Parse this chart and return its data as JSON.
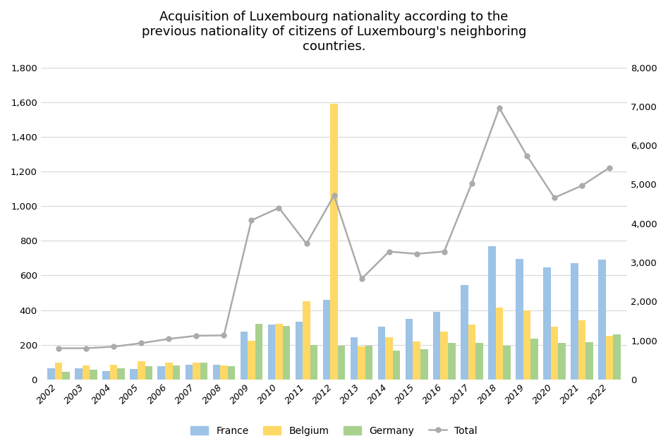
{
  "years": [
    2002,
    2003,
    2004,
    2005,
    2006,
    2007,
    2008,
    2009,
    2010,
    2011,
    2012,
    2013,
    2014,
    2015,
    2016,
    2017,
    2018,
    2019,
    2020,
    2021,
    2022
  ],
  "france": [
    65,
    65,
    50,
    60,
    75,
    85,
    85,
    275,
    315,
    335,
    460,
    245,
    305,
    350,
    390,
    545,
    770,
    695,
    645,
    670,
    690
  ],
  "belgium": [
    95,
    80,
    85,
    105,
    95,
    95,
    80,
    225,
    320,
    450,
    1590,
    190,
    245,
    220,
    275,
    315,
    415,
    400,
    305,
    340,
    250
  ],
  "germany": [
    45,
    55,
    65,
    75,
    80,
    95,
    75,
    320,
    310,
    200,
    195,
    195,
    165,
    175,
    210,
    210,
    195,
    235,
    210,
    215,
    260
  ],
  "total": [
    800,
    800,
    840,
    930,
    1040,
    1120,
    1130,
    4080,
    4400,
    3480,
    4720,
    2580,
    3280,
    3220,
    3280,
    5030,
    6960,
    5740,
    4660,
    4970,
    5430
  ],
  "title": "Acquisition of Luxembourg nationality according to the\nprevious nationality of citizens of Luxembourg's neighboring\ncountries.",
  "france_color": "#9DC3E6",
  "belgium_color": "#FFD966",
  "germany_color": "#A9D18E",
  "total_color": "#AEAAAA",
  "bg_color": "#FFFFFF",
  "left_ylim": [
    0,
    1800
  ],
  "right_ylim": [
    0,
    8000
  ],
  "left_yticks": [
    0,
    200,
    400,
    600,
    800,
    1000,
    1200,
    1400,
    1600,
    1800
  ],
  "right_yticks": [
    0,
    1000,
    2000,
    3000,
    4000,
    5000,
    6000,
    7000,
    8000
  ],
  "bar_width": 0.27,
  "title_fontsize": 13,
  "tick_fontsize": 9.5,
  "legend_fontsize": 10
}
